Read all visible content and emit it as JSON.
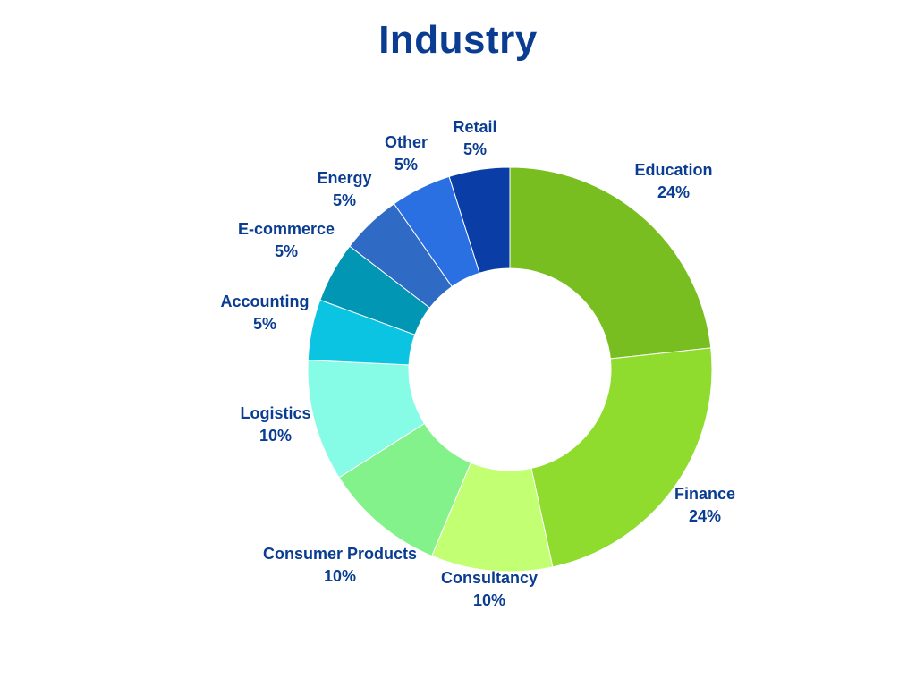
{
  "chart_data": {
    "type": "pie",
    "variant": "donut",
    "title": "Industry",
    "slices": [
      {
        "label": "Education",
        "value": 24,
        "value_label": "24%",
        "color": "#78be21"
      },
      {
        "label": "Finance",
        "value": 24,
        "value_label": "24%",
        "color": "#8fdc2f"
      },
      {
        "label": "Consultancy",
        "value": 10,
        "value_label": "10%",
        "color": "#c2ff72"
      },
      {
        "label": "Consumer Products",
        "value": 10,
        "value_label": "10%",
        "color": "#84f28a"
      },
      {
        "label": "Logistics",
        "value": 10,
        "value_label": "10%",
        "color": "#86fbe6"
      },
      {
        "label": "Accounting",
        "value": 5,
        "value_label": "5%",
        "color": "#0bc4e1"
      },
      {
        "label": "E-commerce",
        "value": 5,
        "value_label": "5%",
        "color": "#0096b4"
      },
      {
        "label": "Energy",
        "value": 5,
        "value_label": "5%",
        "color": "#2f6ac4"
      },
      {
        "label": "Other",
        "value": 5,
        "value_label": "5%",
        "color": "#2b70e2"
      },
      {
        "label": "Retail",
        "value": 5,
        "value_label": "5%",
        "color": "#0a3ea6"
      }
    ],
    "label_color": "#0a3d91",
    "start_angle": "12 o'clock",
    "direction": "clockwise",
    "legend": "none"
  }
}
